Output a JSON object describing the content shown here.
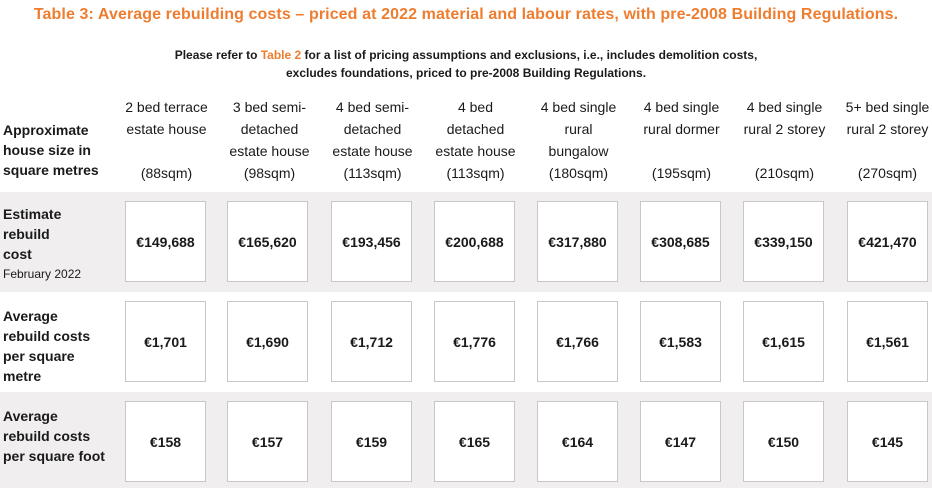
{
  "title": "Table 3:  Average rebuilding costs – priced at 2022 material and labour rates, with pre-2008 Building Regulations.",
  "subtitle": {
    "before": "Please refer to ",
    "link": "Table 2",
    "after": " for a list of pricing assumptions and exclusions, i.e., includes demolition costs,",
    "line2": "excludes foundations, priced to pre-2008 Building Regulations."
  },
  "header_label": [
    "Approximate",
    "house size in",
    "square metres"
  ],
  "columns": [
    {
      "name": [
        "2 bed terrace",
        "estate house"
      ],
      "size": "(88sqm)"
    },
    {
      "name": [
        "3 bed semi-",
        "detached",
        "estate house"
      ],
      "size": "(98sqm)"
    },
    {
      "name": [
        "4 bed semi-",
        "detached",
        "estate house"
      ],
      "size": "(113sqm)"
    },
    {
      "name": [
        "4 bed",
        "detached",
        "estate house"
      ],
      "size": "(113sqm)"
    },
    {
      "name": [
        "4 bed single",
        "rural",
        "bungalow"
      ],
      "size": "(180sqm)"
    },
    {
      "name": [
        "4 bed single",
        "rural dormer"
      ],
      "size": "(195sqm)"
    },
    {
      "name": [
        "4 bed single",
        "rural 2 storey"
      ],
      "size": "(210sqm)"
    },
    {
      "name": [
        "5+ bed single",
        "rural 2 storey"
      ],
      "size": "(270sqm)"
    }
  ],
  "rows": [
    {
      "label": [
        "Estimate",
        "rebuild",
        "cost"
      ],
      "note": "February 2022",
      "values": [
        "€149,688",
        "€165,620",
        "€193,456",
        "€200,688",
        "€317,880",
        "€308,685",
        "€339,150",
        "€421,470"
      ]
    },
    {
      "label": [
        "Average",
        "rebuild  costs",
        "per square",
        "metre"
      ],
      "note": "",
      "values": [
        "€1,701",
        "€1,690",
        "€1,712",
        "€1,776",
        "€1,766",
        "€1,583",
        "€1,615",
        "€1,561"
      ]
    },
    {
      "label": [
        "Average",
        "rebuild  costs",
        "per square foot"
      ],
      "note": "",
      "values": [
        "€158",
        "€157",
        "€159",
        "€165",
        "€164",
        "€147",
        "€150",
        "€145"
      ]
    }
  ]
}
